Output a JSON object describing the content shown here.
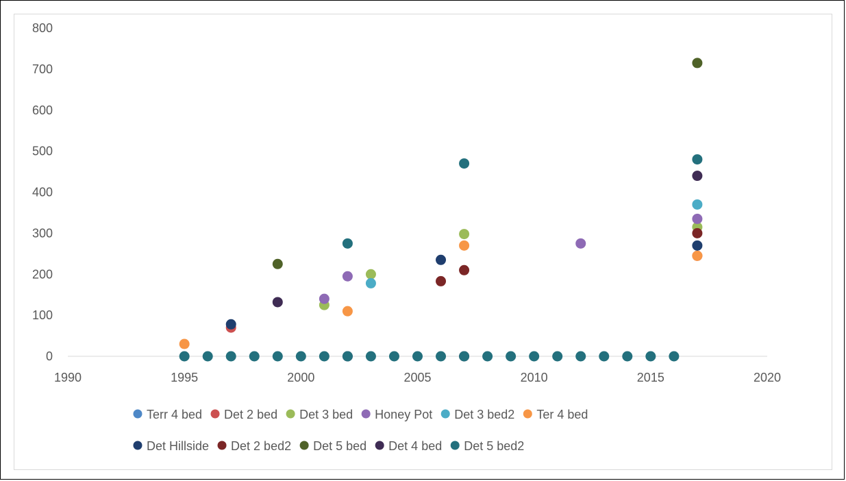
{
  "chart_data": {
    "type": "scatter",
    "title": "",
    "xlabel": "",
    "ylabel": "",
    "xlim": [
      1990,
      2020
    ],
    "ylim": [
      0,
      800
    ],
    "x_ticks": [
      1990,
      1995,
      2000,
      2005,
      2010,
      2015,
      2020
    ],
    "y_ticks": [
      0,
      100,
      200,
      300,
      400,
      500,
      600,
      700,
      800
    ],
    "grid": false,
    "legend_position": "bottom",
    "baseline_years": [
      1995,
      1996,
      1997,
      1998,
      1999,
      2000,
      2001,
      2002,
      2003,
      2004,
      2005,
      2006,
      2007,
      2008,
      2009,
      2010,
      2011,
      2012,
      2013,
      2014,
      2015,
      2016
    ],
    "series": [
      {
        "name": "Terr 4 bed",
        "color": "#4e88c7",
        "points": []
      },
      {
        "name": "Det 2 bed",
        "color": "#cc5050",
        "points": [
          [
            1997,
            70
          ],
          [
            2017,
            245
          ]
        ]
      },
      {
        "name": "Det 3 bed",
        "color": "#9bbb59",
        "points": [
          [
            2001,
            125
          ],
          [
            2003,
            200
          ],
          [
            2007,
            298
          ],
          [
            2017,
            315
          ]
        ]
      },
      {
        "name": "Honey Pot",
        "color": "#8e6ab5",
        "points": [
          [
            2001,
            140
          ],
          [
            2002,
            195
          ],
          [
            2012,
            275
          ],
          [
            2017,
            335
          ]
        ]
      },
      {
        "name": "Det 3 bed2",
        "color": "#4bacc6",
        "points": [
          [
            2003,
            178
          ],
          [
            2017,
            370
          ]
        ]
      },
      {
        "name": "Ter 4 bed",
        "color": "#f79646",
        "points": [
          [
            1995,
            30
          ],
          [
            2002,
            110
          ],
          [
            2007,
            270
          ],
          [
            2017,
            245
          ]
        ]
      },
      {
        "name": "Det Hillside",
        "color": "#1f3e6e",
        "points": [
          [
            1997,
            78
          ],
          [
            2006,
            235
          ],
          [
            2017,
            270
          ]
        ]
      },
      {
        "name": "Det 2 bed2",
        "color": "#7b2626",
        "points": [
          [
            2006,
            183
          ],
          [
            2007,
            210
          ],
          [
            2017,
            300
          ]
        ]
      },
      {
        "name": "Det 5 bed",
        "color": "#4f6228",
        "points": [
          [
            1999,
            225
          ],
          [
            2017,
            715
          ]
        ]
      },
      {
        "name": "Det 4 bed",
        "color": "#3f2c54",
        "points": [
          [
            1999,
            132
          ],
          [
            2002,
            0
          ],
          [
            2007,
            0
          ],
          [
            2017,
            440
          ]
        ]
      },
      {
        "name": "Det 5 bed2",
        "color": "#23707d",
        "points": [
          [
            2002,
            275
          ],
          [
            2007,
            470
          ],
          [
            2017,
            480
          ]
        ]
      }
    ]
  }
}
